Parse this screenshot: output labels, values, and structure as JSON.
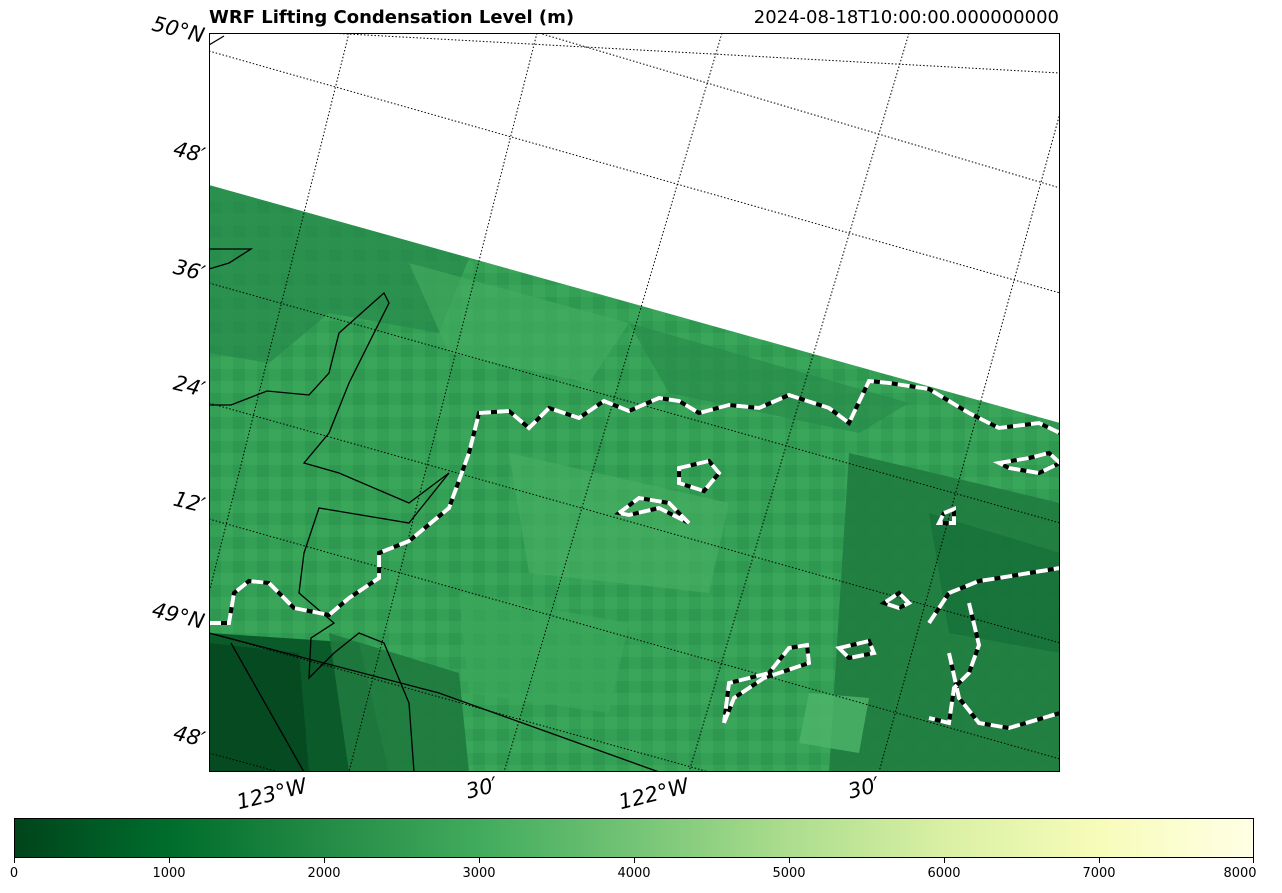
{
  "title": "WRF Lifting Condensation Level (m)",
  "timestamp": "2024-08-18T10:00:00.000000000",
  "lat_labels": [
    "50°N",
    "48′",
    "36′",
    "24′",
    "12′",
    "49°N",
    "48′"
  ],
  "lon_labels": [
    "123°W",
    "30′",
    "122°W",
    "30′"
  ],
  "colorbar": {
    "ticks": [
      "0",
      "1000",
      "2000",
      "3000",
      "4000",
      "5000",
      "6000",
      "7000",
      "8000"
    ],
    "min": 0,
    "max": 8000,
    "colormap": [
      "#00441b",
      "#006d2c",
      "#238b45",
      "#41ab5d",
      "#74c476",
      "#addd8e",
      "#d9f0a3",
      "#f7fcb9",
      "#ffffe5"
    ]
  },
  "colors": {
    "field_dark": "#1f7a3e",
    "field_mid": "#2e9a52",
    "field_light": "#43ac5f",
    "contour_dash": "#ffffff",
    "contour_gap": "#000000",
    "coastline": "#000000",
    "gridline": "#000000"
  }
}
